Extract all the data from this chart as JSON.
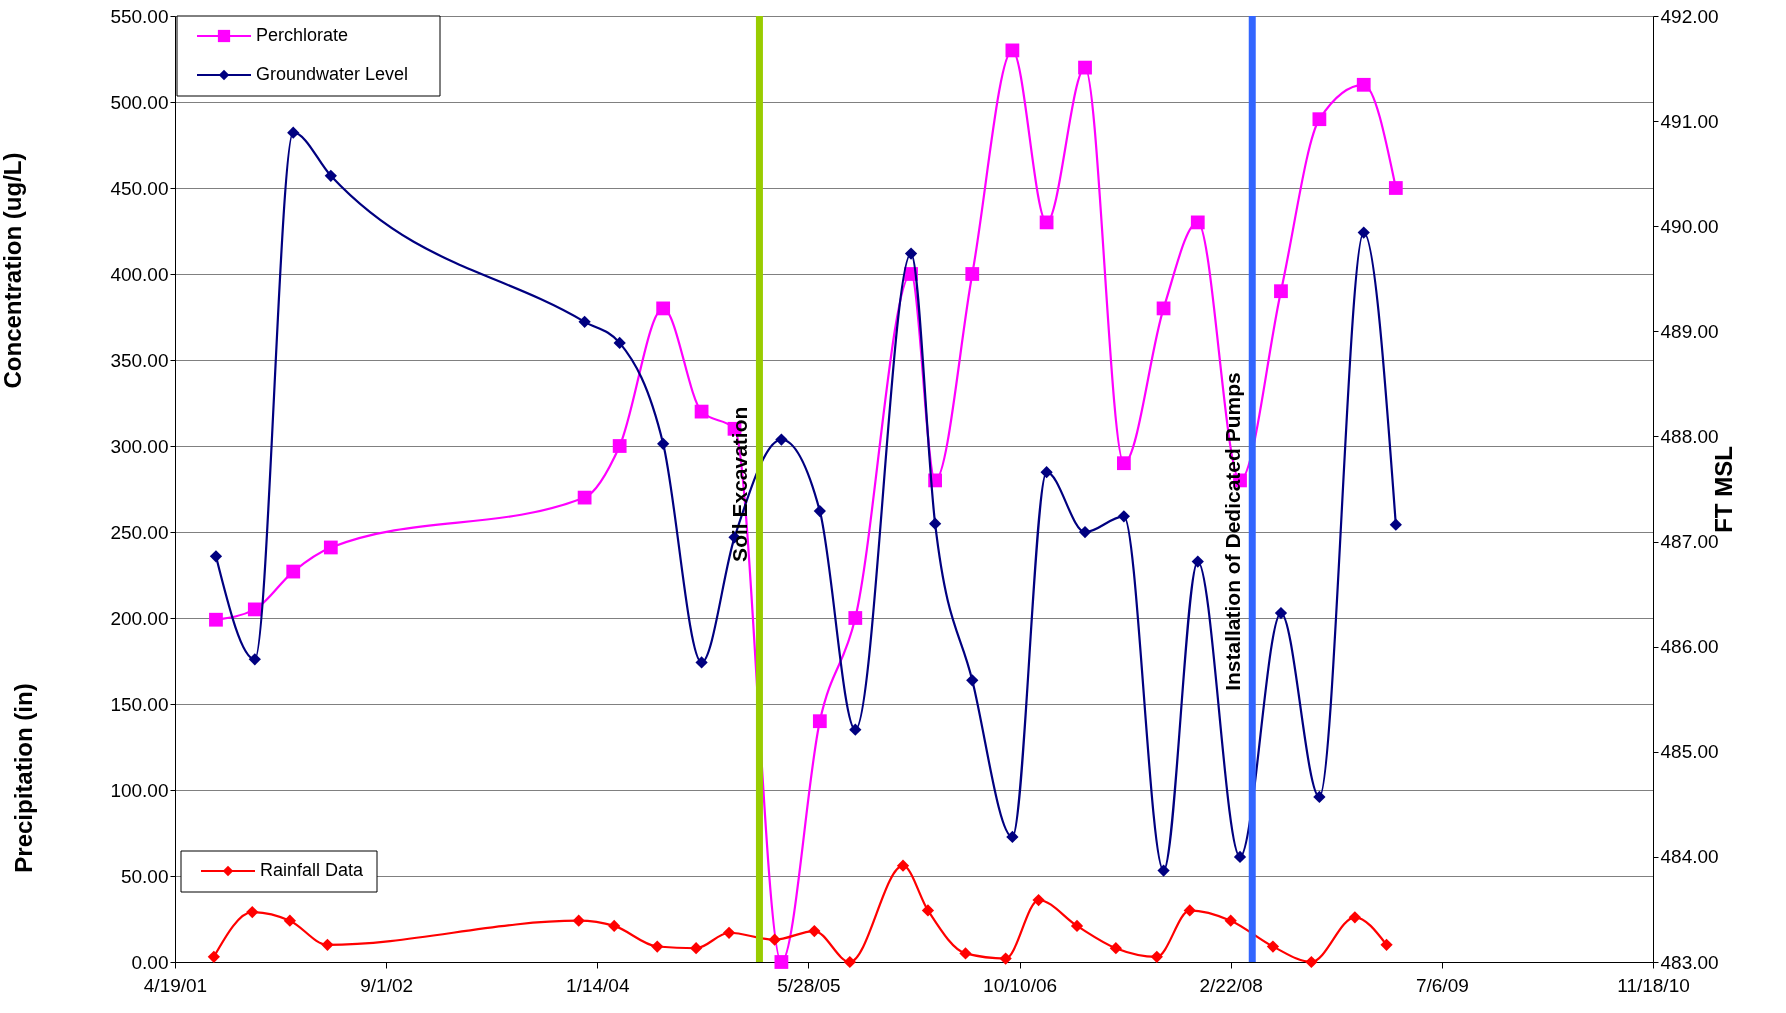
{
  "chart_data": {
    "type": "line",
    "ylabel": "Concentration (ug/L)",
    "y2label": "FT MSL",
    "annotations": [
      "Precipitation (in)"
    ],
    "xlim": [
      "2001-04-19",
      "2010-11-18"
    ],
    "xticks": [
      {
        "value": "2001-04-19",
        "label": "4/19/01"
      },
      {
        "value": "2002-09-01",
        "label": "9/1/02"
      },
      {
        "value": "2004-01-14",
        "label": "1/14/04"
      },
      {
        "value": "2005-05-28",
        "label": "5/28/05"
      },
      {
        "value": "2006-10-10",
        "label": "10/10/06"
      },
      {
        "value": "2008-02-22",
        "label": "2/22/08"
      },
      {
        "value": "2009-07-06",
        "label": "7/6/09"
      },
      {
        "value": "2010-11-18",
        "label": "11/18/10"
      }
    ],
    "ylim": [
      0,
      550
    ],
    "yticks": [
      {
        "value": 0,
        "label": "0.00"
      },
      {
        "value": 50,
        "label": "50.00"
      },
      {
        "value": 100,
        "label": "100.00"
      },
      {
        "value": 150,
        "label": "150.00"
      },
      {
        "value": 200,
        "label": "200.00"
      },
      {
        "value": 250,
        "label": "250.00"
      },
      {
        "value": 300,
        "label": "300.00"
      },
      {
        "value": 350,
        "label": "350.00"
      },
      {
        "value": 400,
        "label": "400.00"
      },
      {
        "value": 450,
        "label": "450.00"
      },
      {
        "value": 500,
        "label": "500.00"
      },
      {
        "value": 550,
        "label": "550.00"
      }
    ],
    "y2lim": [
      483,
      492
    ],
    "y2ticks": [
      {
        "value": 483,
        "label": "483.00"
      },
      {
        "value": 484,
        "label": "484.00"
      },
      {
        "value": 485,
        "label": "485.00"
      },
      {
        "value": 486,
        "label": "486.00"
      },
      {
        "value": 487,
        "label": "487.00"
      },
      {
        "value": 488,
        "label": "488.00"
      },
      {
        "value": 489,
        "label": "489.00"
      },
      {
        "value": 490,
        "label": "490.00"
      },
      {
        "value": 491,
        "label": "491.00"
      },
      {
        "value": 492,
        "label": "492.00"
      }
    ],
    "grid": "y",
    "legend": "top left",
    "series": [
      {
        "name": "Perchlorate",
        "color": "#ff00ff",
        "marker": "square",
        "x": [
          "2001-07-25",
          "2001-10-25",
          "2002-01-24",
          "2002-04-23",
          "2003-12-15",
          "2004-03-07",
          "2004-06-18",
          "2004-09-17",
          "2004-12-04",
          "2005-03-25",
          "2005-06-24",
          "2005-09-16",
          "2006-01-26",
          "2006-03-24",
          "2006-06-20",
          "2006-09-23",
          "2006-12-13",
          "2007-03-14",
          "2007-06-14",
          "2007-09-16",
          "2007-12-06",
          "2008-03-15",
          "2008-06-20",
          "2008-09-19",
          "2009-01-02",
          "2009-03-19"
        ],
        "values": [
          199,
          205,
          227,
          241,
          270,
          300,
          380,
          320,
          310,
          0,
          140,
          200,
          400,
          280,
          400,
          530,
          430,
          520,
          290,
          380,
          430,
          280,
          390,
          490,
          510,
          450
        ]
      },
      {
        "name": "Groundwater Level",
        "color": "#000080",
        "marker": "diamond",
        "axis": "y2",
        "x": [
          "2001-07-25",
          "2001-10-25",
          "2002-01-24",
          "2002-04-23",
          "2003-12-15",
          "2004-03-07",
          "2004-06-18",
          "2004-09-17",
          "2004-12-04",
          "2005-03-25",
          "2005-06-24",
          "2005-09-16",
          "2006-01-26",
          "2006-03-24",
          "2006-06-20",
          "2006-09-23",
          "2006-12-13",
          "2007-03-14",
          "2007-06-14",
          "2007-09-16",
          "2007-12-06",
          "2008-03-15",
          "2008-06-20",
          "2008-09-19",
          "2009-01-02",
          "2009-03-19"
        ],
        "values": [
          486.86,
          485.88,
          490.89,
          490.48,
          489.09,
          488.89,
          487.93,
          485.85,
          487.04,
          487.97,
          487.29,
          485.21,
          489.74,
          487.17,
          485.68,
          484.19,
          487.66,
          487.09,
          487.24,
          483.87,
          486.81,
          484.0,
          486.32,
          484.57,
          489.94,
          487.16
        ]
      },
      {
        "name": "Rainfall Data",
        "color": "#ff0000",
        "marker": "diamond",
        "x": [
          "2001-07-20",
          "2001-10-19",
          "2002-01-16",
          "2002-04-15",
          "2003-12-01",
          "2004-02-23",
          "2004-06-04",
          "2004-09-04",
          "2004-11-21",
          "2005-03-09",
          "2005-06-11",
          "2005-09-03",
          "2006-01-07",
          "2006-03-07",
          "2006-06-04",
          "2006-09-07",
          "2006-11-24",
          "2007-02-23",
          "2007-05-26",
          "2007-08-31",
          "2007-11-17",
          "2008-02-22",
          "2008-06-01",
          "2008-08-31",
          "2008-12-12",
          "2009-02-25"
        ],
        "values": [
          3,
          29,
          24,
          10,
          24,
          21,
          9,
          8,
          17,
          13,
          18,
          0,
          56,
          30,
          5,
          2,
          36,
          21,
          8,
          3,
          30,
          24,
          9,
          0,
          26,
          10
        ]
      }
    ],
    "ref_lines": [
      {
        "axis": "x",
        "value": "2005-02-01",
        "label": "Soil Excavation",
        "color": "#99cc00"
      },
      {
        "axis": "x",
        "value": "2008-04-13",
        "label": "Installation of Dedicated Pumps",
        "color": "#3366ff"
      }
    ]
  }
}
